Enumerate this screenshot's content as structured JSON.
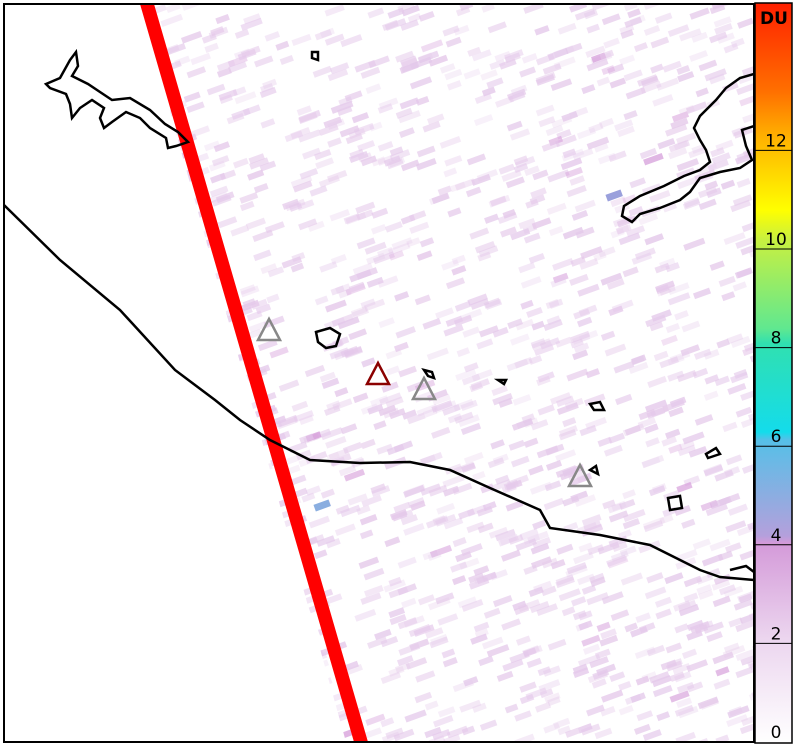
{
  "colorbar": {
    "unit_label": "DU",
    "ticks": [
      "0",
      "2",
      "4",
      "6",
      "8",
      "10",
      "12"
    ],
    "range": [
      0,
      14.4
    ],
    "colors": [
      "#f7f0f8",
      "#e6c4e8",
      "#d49ad9",
      "#a8a8e0",
      "#55c0e8",
      "#14dceb",
      "#60e890",
      "#b8f040",
      "#ffff00",
      "#ffb000",
      "#ff6a00",
      "#ff2000"
    ]
  },
  "map": {
    "swath_edge_color": "#ff0000",
    "coastline_color": "#000000",
    "volcano_markers": [
      {
        "status": "inactive",
        "color": "#888888"
      },
      {
        "status": "active",
        "color": "#8b0000"
      },
      {
        "status": "inactive",
        "color": "#888888"
      },
      {
        "status": "inactive",
        "color": "#888888"
      }
    ]
  }
}
